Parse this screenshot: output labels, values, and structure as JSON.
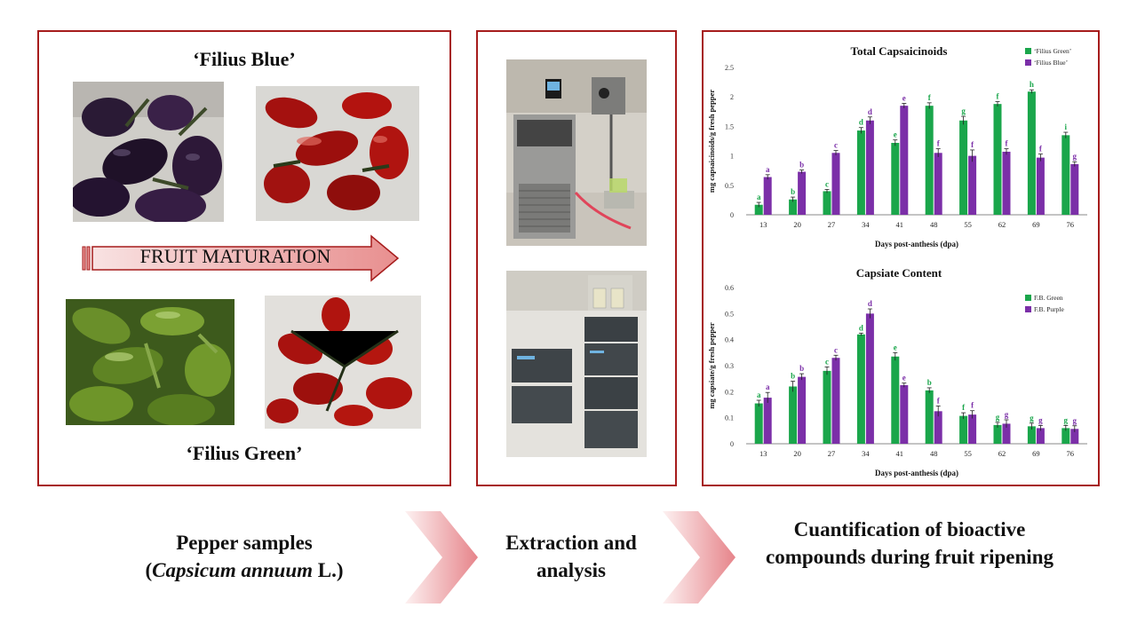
{
  "panel1": {
    "top_label": "‘Filius Blue’",
    "bottom_label": "‘Filius Green’",
    "arrow_label": "FRUIT MATURATION"
  },
  "captions": {
    "samples_line1": "Pepper samples",
    "samples_open": "(",
    "samples_species": "Capsicum annuum",
    "samples_close": " L.)",
    "extraction": "Extraction and analysis",
    "quantification": "Cuantification of bioactive compounds during fruit ripening"
  },
  "colors": {
    "border": "#a61c1c",
    "green_series": "#1aa64b",
    "purple_series": "#7b2fa8",
    "chevron": "#e8a3a3"
  },
  "chart_data": [
    {
      "type": "bar",
      "title": "Total Capsaicinoids",
      "xlabel": "Days post-anthesis (dpa)",
      "ylabel": "mg capsaicinoids/g fresh pepper",
      "ylim": [
        0,
        2.5
      ],
      "yticks": [
        "0",
        "0.5",
        "1",
        "1.5",
        "2",
        "2.5"
      ],
      "categories": [
        "13",
        "20",
        "27",
        "34",
        "41",
        "48",
        "55",
        "62",
        "69",
        "76"
      ],
      "legend_position": "top-right",
      "series": [
        {
          "name": "‘Filius Green’",
          "color": "#1aa64b",
          "values": [
            0.17,
            0.26,
            0.4,
            1.43,
            1.22,
            1.85,
            1.6,
            1.88,
            2.09,
            1.35
          ],
          "errors": [
            0.04,
            0.04,
            0.03,
            0.05,
            0.05,
            0.05,
            0.07,
            0.04,
            0.03,
            0.05
          ],
          "letters": [
            "a",
            "b",
            "c",
            "d",
            "e",
            "f",
            "g",
            "f",
            "h",
            "i"
          ]
        },
        {
          "name": "‘Filius Blue’",
          "color": "#7b2fa8",
          "values": [
            0.64,
            0.73,
            1.05,
            1.6,
            1.85,
            1.05,
            1.0,
            1.07,
            0.97,
            0.86
          ],
          "errors": [
            0.04,
            0.03,
            0.04,
            0.06,
            0.04,
            0.07,
            0.1,
            0.05,
            0.06,
            0.04
          ],
          "letters": [
            "a",
            "b",
            "c",
            "d",
            "e",
            "f",
            "f",
            "f",
            "f",
            "g"
          ]
        }
      ]
    },
    {
      "type": "bar",
      "title": "Capsiate Content",
      "xlabel": "Days post-anthesis (dpa)",
      "ylabel": "mg capsiate/g fresh pepper",
      "ylim": [
        0,
        0.6
      ],
      "yticks": [
        "0",
        "0.1",
        "0.2",
        "0.3",
        "0.4",
        "0.5",
        "0.6"
      ],
      "categories": [
        "13",
        "20",
        "27",
        "34",
        "41",
        "48",
        "55",
        "62",
        "69",
        "76"
      ],
      "legend_position": "top-right",
      "series": [
        {
          "name": "F.B. Green",
          "color": "#1aa64b",
          "values": [
            0.155,
            0.22,
            0.28,
            0.42,
            0.335,
            0.205,
            0.107,
            0.072,
            0.067,
            0.06
          ],
          "errors": [
            0.012,
            0.02,
            0.015,
            0.005,
            0.015,
            0.01,
            0.012,
            0.01,
            0.012,
            0.01
          ],
          "letters": [
            "a",
            "b",
            "c",
            "d",
            "e",
            "b",
            "f",
            "g",
            "g",
            "g"
          ]
        },
        {
          "name": "F.B. Purple",
          "color": "#7b2fa8",
          "values": [
            0.177,
            0.257,
            0.33,
            0.5,
            0.225,
            0.125,
            0.112,
            0.077,
            0.06,
            0.057
          ],
          "errors": [
            0.02,
            0.012,
            0.01,
            0.018,
            0.008,
            0.02,
            0.015,
            0.015,
            0.01,
            0.012
          ],
          "letters": [
            "a",
            "b",
            "c",
            "d",
            "e",
            "f",
            "f",
            "g",
            "g",
            "g"
          ]
        }
      ]
    }
  ]
}
